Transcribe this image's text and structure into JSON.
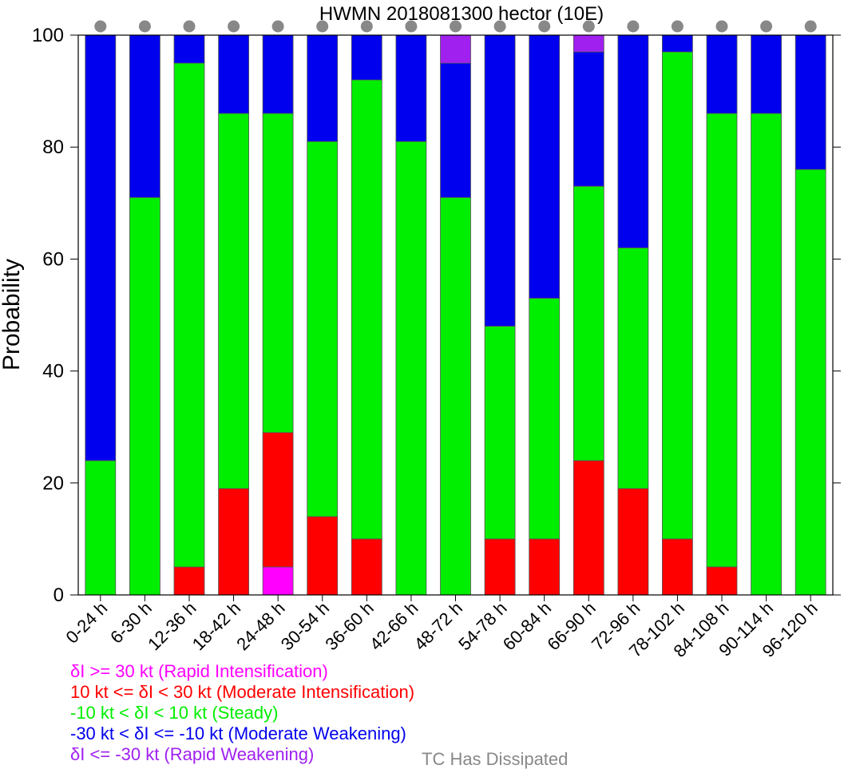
{
  "colors": {
    "rapid_intensification": "#ff00ff",
    "moderate_intensification": "#ff0000",
    "steady": "#00ee00",
    "moderate_weakening": "#0000ee",
    "rapid_weakening": "#a020f0",
    "dissipated": "#888888"
  },
  "legend": [
    {
      "label": "δI >= 30 kt (Rapid Intensification)",
      "color": "#ff00ff"
    },
    {
      "label": "10 kt <= δI < 30 kt (Moderate Intensification)",
      "color": "#ff0000"
    },
    {
      "label": "-10 kt < δI < 10 kt (Steady)",
      "color": "#00ee00"
    },
    {
      "label": "-30 kt < δI <= -10 kt (Moderate Weakening)",
      "color": "#0000ee"
    },
    {
      "label": "δI <= -30 kt (Rapid Weakening)",
      "color": "#a020f0"
    }
  ],
  "dissipated_label": "TC Has Dissipated",
  "chart_data": {
    "type": "bar",
    "stacked": true,
    "title": "HWMN 2018081300 hector (10E)",
    "xlabel": "",
    "ylabel": "Probability",
    "ylim": [
      0,
      100
    ],
    "yticks": [
      0,
      20,
      40,
      60,
      80,
      100
    ],
    "categories": [
      "0-24 h",
      "6-30 h",
      "12-36 h",
      "18-42 h",
      "24-48 h",
      "30-54 h",
      "36-60 h",
      "42-66 h",
      "48-72 h",
      "54-78 h",
      "60-84 h",
      "66-90 h",
      "72-96 h",
      "78-102 h",
      "84-108 h",
      "90-114 h",
      "96-120 h"
    ],
    "series": [
      {
        "key": "rapid_intensification",
        "values": [
          0,
          0,
          0,
          0,
          5,
          0,
          0,
          0,
          0,
          0,
          0,
          0,
          0,
          0,
          0,
          0,
          0
        ]
      },
      {
        "key": "moderate_intensification",
        "values": [
          0,
          0,
          5,
          19,
          24,
          14,
          10,
          0,
          0,
          10,
          10,
          24,
          19,
          10,
          5,
          0,
          0
        ]
      },
      {
        "key": "steady",
        "values": [
          24,
          71,
          90,
          67,
          57,
          67,
          82,
          81,
          71,
          38,
          43,
          49,
          43,
          87,
          81,
          86,
          76
        ]
      },
      {
        "key": "moderate_weakening",
        "values": [
          76,
          29,
          5,
          14,
          14,
          19,
          8,
          19,
          24,
          52,
          47,
          24,
          38,
          3,
          14,
          14,
          24
        ]
      },
      {
        "key": "rapid_weakening",
        "values": [
          0,
          0,
          0,
          0,
          0,
          0,
          0,
          0,
          5,
          0,
          0,
          3,
          0,
          0,
          0,
          0,
          0
        ]
      }
    ],
    "dissipated_markers": [
      true,
      true,
      true,
      true,
      true,
      true,
      true,
      true,
      true,
      true,
      true,
      true,
      true,
      true,
      true,
      true,
      true
    ]
  }
}
